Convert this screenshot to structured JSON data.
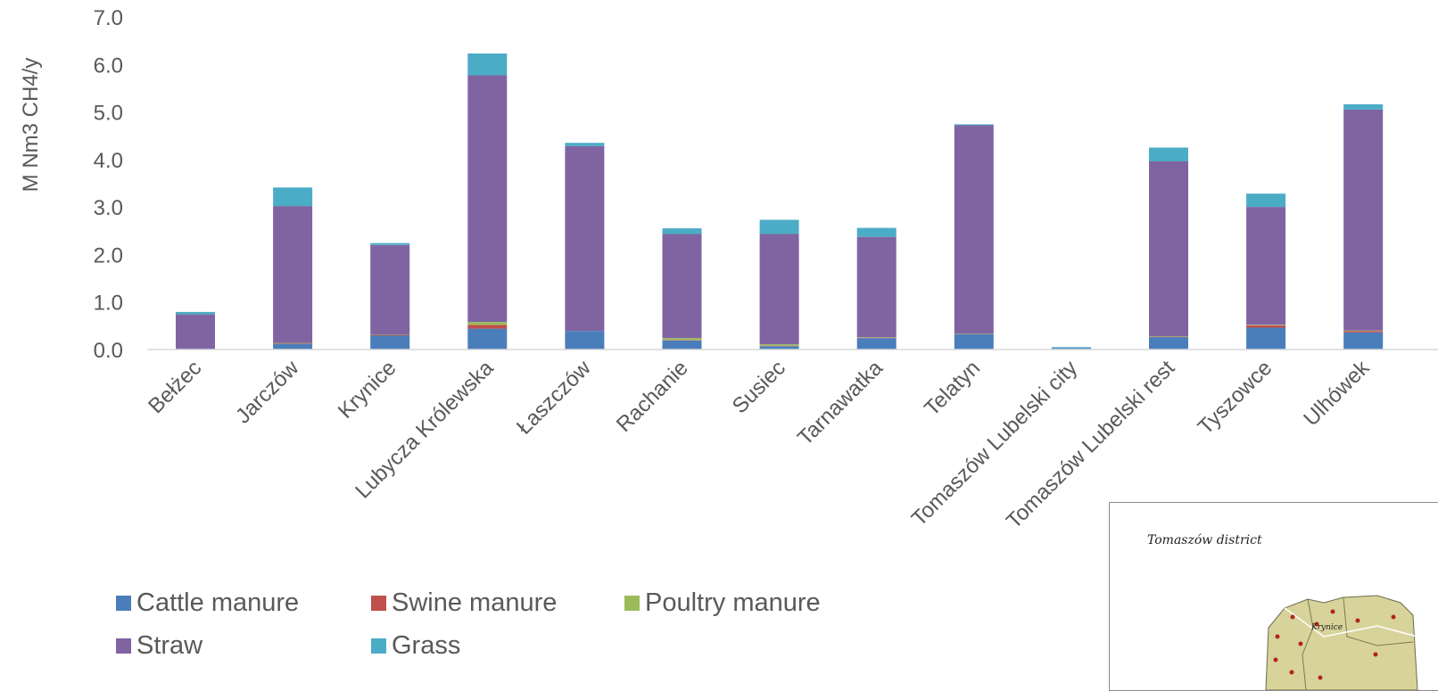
{
  "chart_data": {
    "type": "bar",
    "stacked": true,
    "ylabel": "M Nm3 CH4/y",
    "ylim": [
      0,
      7
    ],
    "yticks": [
      "0.0",
      "1.0",
      "2.0",
      "3.0",
      "4.0",
      "5.0",
      "6.0",
      "7.0"
    ],
    "grid": false,
    "legend_position": "bottom-left",
    "categories": [
      "Bełżec",
      "Jarczów",
      "Krynice",
      "Lubycza Królewska",
      "Łaszczów",
      "Rachanie",
      "Susiec",
      "Tarnawatka",
      "Telatyn",
      "Tomaszów Lubelski city",
      "Tomaszów Lubelski rest",
      "Tyszowce",
      "Ulhówek"
    ],
    "series": [
      {
        "name": "Cattle manure",
        "color": "#4a7ebb",
        "values": [
          0.02,
          0.12,
          0.29,
          0.44,
          0.39,
          0.19,
          0.07,
          0.24,
          0.32,
          0.03,
          0.26,
          0.46,
          0.36
        ]
      },
      {
        "name": "Swine manure",
        "color": "#c0504d",
        "values": [
          0.0,
          0.01,
          0.01,
          0.08,
          0.0,
          0.01,
          0.01,
          0.01,
          0.0,
          0.0,
          0.01,
          0.05,
          0.03
        ]
      },
      {
        "name": "Poultry manure",
        "color": "#9bbb59",
        "values": [
          0.0,
          0.01,
          0.01,
          0.06,
          0.0,
          0.04,
          0.03,
          0.01,
          0.01,
          0.0,
          0.01,
          0.01,
          0.01
        ]
      },
      {
        "name": "Straw",
        "color": "#8064a2",
        "values": [
          0.72,
          2.88,
          1.89,
          5.19,
          3.89,
          2.19,
          2.32,
          2.11,
          4.39,
          0.0,
          3.68,
          2.48,
          4.65
        ]
      },
      {
        "name": "Grass",
        "color": "#4bacc6",
        "values": [
          0.05,
          0.39,
          0.04,
          0.46,
          0.07,
          0.12,
          0.3,
          0.19,
          0.02,
          0.02,
          0.29,
          0.28,
          0.11
        ]
      }
    ]
  },
  "inset": {
    "title": "Tomaszów district",
    "map_label": "Krynice"
  }
}
